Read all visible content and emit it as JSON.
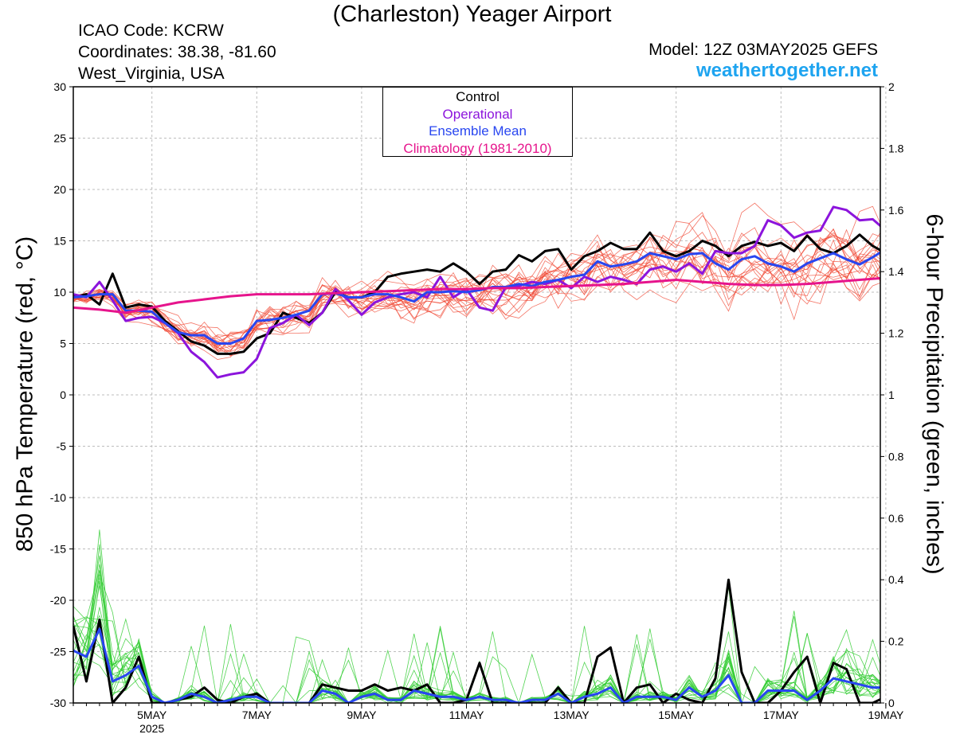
{
  "header": {
    "title": "(Charleston) Yeager Airport",
    "icao": "ICAO Code: KCRW",
    "coords": "Coordinates: 38.38, -81.60",
    "region": "West_Virginia, USA",
    "model": "Model: 12Z 03MAY2025 GEFS",
    "site": "weathertogether.net"
  },
  "legend": {
    "items": [
      "Control",
      "Operational",
      "Ensemble Mean",
      "Climatology (1981-2010)"
    ],
    "colors": [
      "#000000",
      "#8c14dc",
      "#2846f0",
      "#e6148c"
    ]
  },
  "chart_data": {
    "type": "line",
    "xlabel": "",
    "ylabel_left": "850 hPa Temperature (red, °C)",
    "ylabel_right": "6-hour Precipitation (green, inches)",
    "ylim_left": [
      -30,
      30
    ],
    "ylim_right": [
      0,
      2
    ],
    "x_start": "03MAY2025 12Z",
    "x_step_hours": 6,
    "x_ticks": [
      "5MAY",
      "7MAY",
      "9MAY",
      "11MAY",
      "13MAY",
      "15MAY",
      "17MAY",
      "19MAY"
    ],
    "x_tick_year": "2025",
    "y_ticks_left": [
      "30",
      "25",
      "20",
      "15",
      "10",
      "5",
      "0",
      "-5",
      "-10",
      "-15",
      "-20",
      "-25",
      "-30"
    ],
    "y_ticks_right": [
      "2",
      "1.8",
      "1.6",
      "1.4",
      "1.2",
      "1",
      "0.8",
      "0.6",
      "0.4",
      "0.2",
      "0"
    ],
    "grid": true,
    "legend_position": "top-center",
    "series": [
      {
        "name": "Control",
        "color": "#000000",
        "axis": "temperature",
        "values": [
          9.5,
          9.8,
          8.8,
          11.8,
          8.5,
          8.8,
          8.6,
          7.2,
          6.2,
          5.2,
          4.8,
          4,
          4,
          4.2,
          5.5,
          6,
          8,
          7.5,
          7,
          8,
          10,
          9.5,
          9.5,
          10,
          11.5,
          11.8,
          12,
          12.2,
          12,
          12.8,
          12,
          10.8,
          12,
          12.2,
          13.6,
          13,
          14,
          14.2,
          12.2,
          13.5,
          14,
          14.8,
          14.2,
          14.2,
          15.8,
          14,
          13.5,
          14,
          15,
          14.5,
          13.5,
          14.5,
          14.9,
          14.5,
          14.8,
          14,
          15.5,
          14.2,
          13.8,
          14.5,
          15.6,
          14.5,
          13.8,
          15.8,
          17.6,
          16.3,
          15.2
        ]
      },
      {
        "name": "Operational",
        "color": "#8c14dc",
        "axis": "temperature",
        "values": [
          9.8,
          9.5,
          11,
          9.2,
          7.2,
          7.5,
          7.6,
          7,
          6,
          4.2,
          3.2,
          1.7,
          2,
          2.2,
          3.5,
          6.5,
          7,
          7.8,
          6.8,
          8,
          10.3,
          9.2,
          7.8,
          9,
          9.5,
          9.8,
          10,
          9.5,
          11.5,
          9.5,
          10.3,
          8.5,
          8.2,
          10.5,
          10.6,
          11,
          10.8,
          11.2,
          10.4,
          11.5,
          11,
          11.5,
          11.2,
          10.8,
          12.2,
          12.5,
          12,
          12.8,
          11.8,
          14,
          13.8,
          13.8,
          14.5,
          17,
          16.5,
          15.3,
          15.8,
          16,
          18.3,
          18,
          17,
          17.1,
          16,
          16.3,
          14.5,
          13.2,
          12.5,
          15.2,
          17,
          16.3
        ]
      },
      {
        "name": "Ensemble Mean",
        "color": "#2846f0",
        "axis": "temperature",
        "values": [
          9.5,
          9.6,
          9.8,
          9.8,
          8.2,
          8.2,
          8.1,
          7,
          6.1,
          5.8,
          5.8,
          5,
          5,
          5.5,
          7.2,
          7.3,
          7.5,
          7.8,
          8.2,
          9.8,
          9.9,
          9.5,
          9.5,
          9.8,
          9.8,
          9.5,
          9.1,
          10,
          10,
          10.1,
          10,
          10.2,
          10.5,
          10.5,
          10.8,
          10.6,
          11,
          11.2,
          11.5,
          11.7,
          13,
          12.5,
          12.7,
          13,
          13.8,
          13.5,
          13.2,
          13.7,
          13.8,
          12.8,
          12.2,
          13.2,
          13.5,
          12.8,
          12.5,
          12,
          12.8,
          13.3,
          13.8,
          13.2,
          12.7,
          13.4,
          14.2,
          13.5,
          13,
          13.5,
          13,
          11.9,
          11.2
        ]
      },
      {
        "name": "Climatology (1981-2010)",
        "color": "#e6148c",
        "axis": "temperature",
        "values": [
          8.5,
          8.3,
          8,
          8.5,
          9,
          9.3,
          9.6,
          9.8,
          9.8,
          9.8,
          9.9,
          10,
          10.1,
          10.2,
          10.3,
          10.3,
          10.4,
          10.4,
          10.5,
          10.6,
          10.7,
          10.8,
          11,
          11.2,
          11,
          10.8,
          10.7,
          10.7,
          10.8,
          11,
          11.2,
          11.4,
          11.5,
          11.3,
          11.1,
          11
        ]
      },
      {
        "name": "Control precipitation",
        "color": "#000000",
        "axis": "precipitation",
        "values": [
          0.25,
          0.07,
          0.27,
          0,
          0.05,
          0.15,
          0,
          0,
          0.01,
          0.02,
          0.05,
          0.01,
          0,
          0.02,
          0.03,
          0,
          0,
          0,
          0,
          0.06,
          0.05,
          0.04,
          0.04,
          0.06,
          0.04,
          0.05,
          0.04,
          0.06,
          0,
          0,
          0.01,
          0.13,
          0,
          0,
          0,
          0,
          0,
          0.05,
          0,
          0,
          0.15,
          0.18,
          0,
          0.05,
          0.06,
          0,
          0.03,
          0.01,
          0,
          0.08,
          0.4,
          0.1,
          0,
          0,
          0.04,
          0.1,
          0.15,
          0,
          0.13,
          0.11,
          0,
          0,
          0.02,
          0,
          0,
          0,
          0,
          0.01,
          0
        ]
      },
      {
        "name": "Operational precipitation",
        "color": "#8c14dc",
        "axis": "precipitation",
        "values": []
      },
      {
        "name": "Ensemble Mean precipitation",
        "color": "#2846f0",
        "axis": "precipitation",
        "values": [
          0.17,
          0.15,
          0.24,
          0.07,
          0.09,
          0.12,
          0.02,
          0,
          0.01,
          0.03,
          0.02,
          0,
          0.01,
          0.02,
          0.02,
          0,
          0,
          0,
          0,
          0.04,
          0.03,
          0,
          0.02,
          0.03,
          0.01,
          0.01,
          0.04,
          0.03,
          0.02,
          0.02,
          0.01,
          0.02,
          0.01,
          0.01,
          0,
          0.01,
          0.01,
          0.03,
          0,
          0.02,
          0.03,
          0.05,
          0,
          0.02,
          0.02,
          0.02,
          0.01,
          0.05,
          0.02,
          0.04,
          0.09,
          0,
          0,
          0.04,
          0.04,
          0.04,
          0.01,
          0.04,
          0.08,
          0.07,
          0.06,
          0.05,
          0.05,
          0.05,
          0.04,
          0.05,
          0.06,
          0.02,
          0
        ]
      }
    ]
  }
}
